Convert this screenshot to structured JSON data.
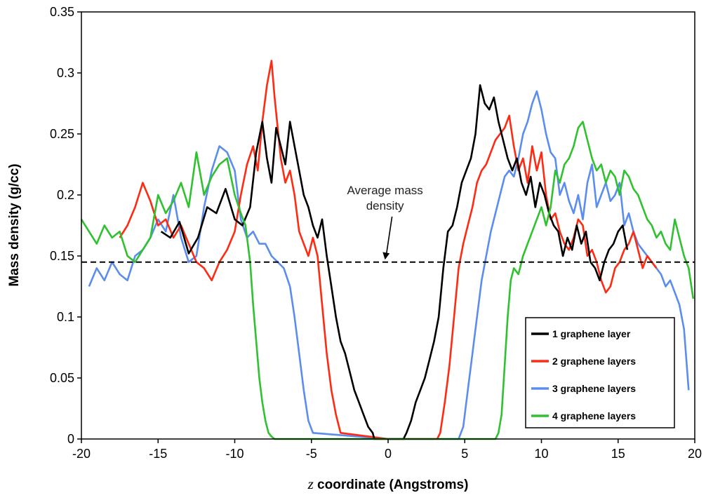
{
  "chart_data": {
    "type": "line",
    "xlabel_var": "z",
    "xlabel_rest": " coordinate (Angstroms)",
    "ylabel": "Mass density (g/cc)",
    "xlim": [
      -20,
      20
    ],
    "ylim": [
      0,
      0.35
    ],
    "x_ticks": [
      "-20",
      "-15",
      "-10",
      "-5",
      "0",
      "5",
      "10",
      "15",
      "20"
    ],
    "y_ticks": [
      "0",
      "0.05",
      "0.1",
      "0.15",
      "0.2",
      "0.25",
      "0.3",
      "0.35"
    ],
    "grid": false,
    "legend_position": "bottom-right",
    "reference_line": {
      "y": 0.145,
      "style": "dashed",
      "color": "#000000"
    },
    "annotation": {
      "line1": "Average mass",
      "line2": "density",
      "x": -0.2,
      "y": 0.188,
      "arrow_to": [
        -0.2,
        0.147
      ]
    },
    "series": [
      {
        "name": "1 graphene layer",
        "color": "#000000",
        "x": [
          -14.8,
          -14.2,
          -13.6,
          -13.0,
          -12.4,
          -11.8,
          -11.2,
          -10.6,
          -10.0,
          -9.5,
          -9.0,
          -8.6,
          -8.2,
          -7.9,
          -7.6,
          -7.3,
          -7.0,
          -6.7,
          -6.4,
          -6.1,
          -5.8,
          -5.5,
          -5.2,
          -4.9,
          -4.6,
          -4.3,
          -4.0,
          -3.7,
          -3.4,
          -3.1,
          -2.8,
          -2.5,
          -2.2,
          -1.9,
          -1.6,
          -1.3,
          -1.0,
          -0.9,
          0.0,
          1.0,
          1.2,
          1.5,
          1.8,
          2.1,
          2.4,
          2.7,
          3.0,
          3.3,
          3.6,
          3.9,
          4.2,
          4.5,
          4.8,
          5.1,
          5.4,
          5.7,
          6.0,
          6.3,
          6.6,
          6.9,
          7.2,
          7.5,
          7.8,
          8.1,
          8.4,
          8.7,
          9.0,
          9.3,
          9.6,
          9.9,
          10.2,
          10.5,
          10.8,
          11.1,
          11.4,
          11.7,
          12.0,
          12.3,
          12.6,
          12.9,
          13.2,
          13.5,
          13.8,
          14.1,
          14.4,
          14.7,
          15.0,
          15.3,
          15.6
        ],
        "y": [
          0.17,
          0.165,
          0.178,
          0.152,
          0.165,
          0.19,
          0.185,
          0.205,
          0.18,
          0.175,
          0.19,
          0.235,
          0.26,
          0.23,
          0.21,
          0.255,
          0.24,
          0.225,
          0.26,
          0.24,
          0.22,
          0.2,
          0.19,
          0.175,
          0.165,
          0.18,
          0.15,
          0.125,
          0.1,
          0.08,
          0.07,
          0.055,
          0.04,
          0.03,
          0.02,
          0.01,
          0.005,
          0.0,
          0.0,
          0.0,
          0.005,
          0.015,
          0.03,
          0.04,
          0.05,
          0.065,
          0.08,
          0.1,
          0.14,
          0.17,
          0.175,
          0.19,
          0.21,
          0.22,
          0.23,
          0.25,
          0.29,
          0.275,
          0.27,
          0.28,
          0.26,
          0.245,
          0.23,
          0.22,
          0.23,
          0.21,
          0.2,
          0.215,
          0.19,
          0.21,
          0.2,
          0.185,
          0.175,
          0.17,
          0.15,
          0.165,
          0.155,
          0.175,
          0.16,
          0.17,
          0.145,
          0.14,
          0.13,
          0.145,
          0.155,
          0.16,
          0.17,
          0.175,
          0.155
        ]
      },
      {
        "name": "2 graphene layers",
        "color": "#ff2a12",
        "x": [
          -17.5,
          -17.0,
          -16.5,
          -16.0,
          -15.5,
          -15.0,
          -14.5,
          -14.0,
          -13.5,
          -13.0,
          -12.5,
          -12.0,
          -11.5,
          -11.0,
          -10.5,
          -10.0,
          -9.6,
          -9.2,
          -8.8,
          -8.5,
          -8.2,
          -7.9,
          -7.6,
          -7.4,
          -7.2,
          -7.0,
          -6.7,
          -6.4,
          -6.1,
          -5.8,
          -5.5,
          -5.2,
          -4.9,
          -4.6,
          -4.3,
          -4.0,
          -3.7,
          -3.4,
          -3.1,
          0.0,
          3.2,
          3.4,
          3.7,
          4.0,
          4.3,
          4.6,
          4.9,
          5.2,
          5.5,
          5.8,
          6.1,
          6.4,
          6.7,
          7.0,
          7.3,
          7.6,
          7.9,
          8.2,
          8.5,
          8.8,
          9.1,
          9.4,
          9.7,
          10.0,
          10.3,
          10.6,
          10.9,
          11.2,
          11.5,
          11.8,
          12.1,
          12.4,
          12.7,
          13.0,
          13.3,
          13.6,
          13.9,
          14.2,
          14.5,
          14.8,
          15.1,
          15.4,
          15.7,
          16.0,
          16.3,
          16.6,
          16.9,
          17.2,
          17.5
        ],
        "y": [
          0.165,
          0.175,
          0.19,
          0.21,
          0.195,
          0.175,
          0.18,
          0.165,
          0.175,
          0.16,
          0.145,
          0.14,
          0.13,
          0.145,
          0.155,
          0.17,
          0.2,
          0.225,
          0.24,
          0.22,
          0.26,
          0.29,
          0.31,
          0.28,
          0.255,
          0.23,
          0.21,
          0.22,
          0.2,
          0.17,
          0.16,
          0.15,
          0.165,
          0.15,
          0.11,
          0.07,
          0.04,
          0.02,
          0.005,
          0.0,
          0.0,
          0.005,
          0.03,
          0.06,
          0.1,
          0.14,
          0.16,
          0.175,
          0.19,
          0.21,
          0.22,
          0.225,
          0.235,
          0.245,
          0.25,
          0.255,
          0.265,
          0.24,
          0.22,
          0.23,
          0.21,
          0.24,
          0.22,
          0.235,
          0.2,
          0.18,
          0.185,
          0.17,
          0.16,
          0.155,
          0.165,
          0.18,
          0.175,
          0.15,
          0.155,
          0.145,
          0.13,
          0.12,
          0.125,
          0.14,
          0.145,
          0.155,
          0.16,
          0.17,
          0.155,
          0.14,
          0.15,
          0.145,
          0.14
        ]
      },
      {
        "name": "3 graphene layers",
        "color": "#5b8def",
        "x": [
          -19.5,
          -19.0,
          -18.5,
          -18.0,
          -17.5,
          -17.0,
          -16.5,
          -16.0,
          -15.5,
          -15.0,
          -14.5,
          -14.0,
          -13.5,
          -13.0,
          -12.5,
          -12.0,
          -11.5,
          -11.0,
          -10.5,
          -10.0,
          -9.6,
          -9.2,
          -8.8,
          -8.4,
          -8.0,
          -7.6,
          -7.2,
          -6.8,
          -6.4,
          -6.1,
          -5.8,
          -5.5,
          -5.2,
          -4.9,
          0.0,
          4.6,
          4.9,
          5.2,
          5.5,
          5.8,
          6.1,
          6.4,
          6.7,
          7.0,
          7.3,
          7.6,
          7.9,
          8.2,
          8.5,
          8.8,
          9.1,
          9.4,
          9.7,
          10.0,
          10.3,
          10.6,
          10.9,
          11.2,
          11.5,
          11.8,
          12.1,
          12.4,
          12.7,
          13.0,
          13.3,
          13.6,
          13.9,
          14.2,
          14.5,
          14.8,
          15.1,
          15.4,
          15.7,
          16.0,
          16.3,
          16.6,
          16.9,
          17.2,
          17.5,
          17.8,
          18.1,
          18.4,
          18.7,
          19.0,
          19.3,
          19.6
        ],
        "y": [
          0.125,
          0.14,
          0.13,
          0.145,
          0.135,
          0.13,
          0.15,
          0.155,
          0.165,
          0.18,
          0.17,
          0.2,
          0.165,
          0.145,
          0.15,
          0.19,
          0.22,
          0.24,
          0.235,
          0.22,
          0.18,
          0.165,
          0.17,
          0.16,
          0.16,
          0.15,
          0.145,
          0.14,
          0.125,
          0.1,
          0.07,
          0.04,
          0.015,
          0.005,
          0.0,
          0.0,
          0.01,
          0.04,
          0.07,
          0.1,
          0.13,
          0.15,
          0.17,
          0.185,
          0.2,
          0.215,
          0.22,
          0.215,
          0.23,
          0.25,
          0.26,
          0.275,
          0.285,
          0.27,
          0.25,
          0.235,
          0.23,
          0.2,
          0.21,
          0.195,
          0.185,
          0.2,
          0.18,
          0.21,
          0.225,
          0.19,
          0.2,
          0.21,
          0.195,
          0.2,
          0.21,
          0.175,
          0.185,
          0.17,
          0.16,
          0.155,
          0.15,
          0.145,
          0.14,
          0.135,
          0.125,
          0.13,
          0.12,
          0.11,
          0.09,
          0.04
        ]
      },
      {
        "name": "4 graphene layers",
        "color": "#2fc12f",
        "x": [
          -20.0,
          -19.5,
          -19.0,
          -18.5,
          -18.0,
          -17.5,
          -17.0,
          -16.5,
          -16.0,
          -15.5,
          -15.0,
          -14.5,
          -14.0,
          -13.5,
          -13.0,
          -12.5,
          -12.0,
          -11.5,
          -11.0,
          -10.5,
          -10.0,
          -9.6,
          -9.3,
          -9.0,
          -8.8,
          -8.6,
          -8.4,
          -8.2,
          -8.0,
          -7.8,
          -7.6,
          -7.4,
          -7.2,
          0.0,
          7.0,
          7.2,
          7.4,
          7.6,
          7.8,
          8.0,
          8.2,
          8.5,
          8.8,
          9.1,
          9.4,
          9.7,
          10.0,
          10.3,
          10.6,
          10.9,
          11.2,
          11.5,
          11.8,
          12.1,
          12.4,
          12.7,
          13.0,
          13.3,
          13.6,
          13.9,
          14.2,
          14.5,
          14.8,
          15.1,
          15.4,
          15.7,
          16.0,
          16.3,
          16.6,
          16.9,
          17.2,
          17.5,
          17.8,
          18.1,
          18.4,
          18.7,
          19.0,
          19.3,
          19.6,
          19.9
        ],
        "y": [
          0.18,
          0.17,
          0.16,
          0.175,
          0.165,
          0.17,
          0.15,
          0.145,
          0.155,
          0.165,
          0.2,
          0.185,
          0.195,
          0.21,
          0.19,
          0.235,
          0.2,
          0.215,
          0.225,
          0.23,
          0.2,
          0.185,
          0.175,
          0.145,
          0.11,
          0.08,
          0.05,
          0.03,
          0.015,
          0.005,
          0.002,
          0.0,
          0.0,
          0.0,
          0.0,
          0.005,
          0.02,
          0.06,
          0.1,
          0.13,
          0.14,
          0.135,
          0.15,
          0.16,
          0.17,
          0.18,
          0.19,
          0.175,
          0.19,
          0.22,
          0.21,
          0.225,
          0.23,
          0.24,
          0.255,
          0.26,
          0.245,
          0.23,
          0.22,
          0.225,
          0.21,
          0.22,
          0.215,
          0.2,
          0.22,
          0.215,
          0.205,
          0.2,
          0.19,
          0.18,
          0.175,
          0.165,
          0.17,
          0.16,
          0.155,
          0.18,
          0.165,
          0.15,
          0.14,
          0.115
        ]
      }
    ]
  }
}
